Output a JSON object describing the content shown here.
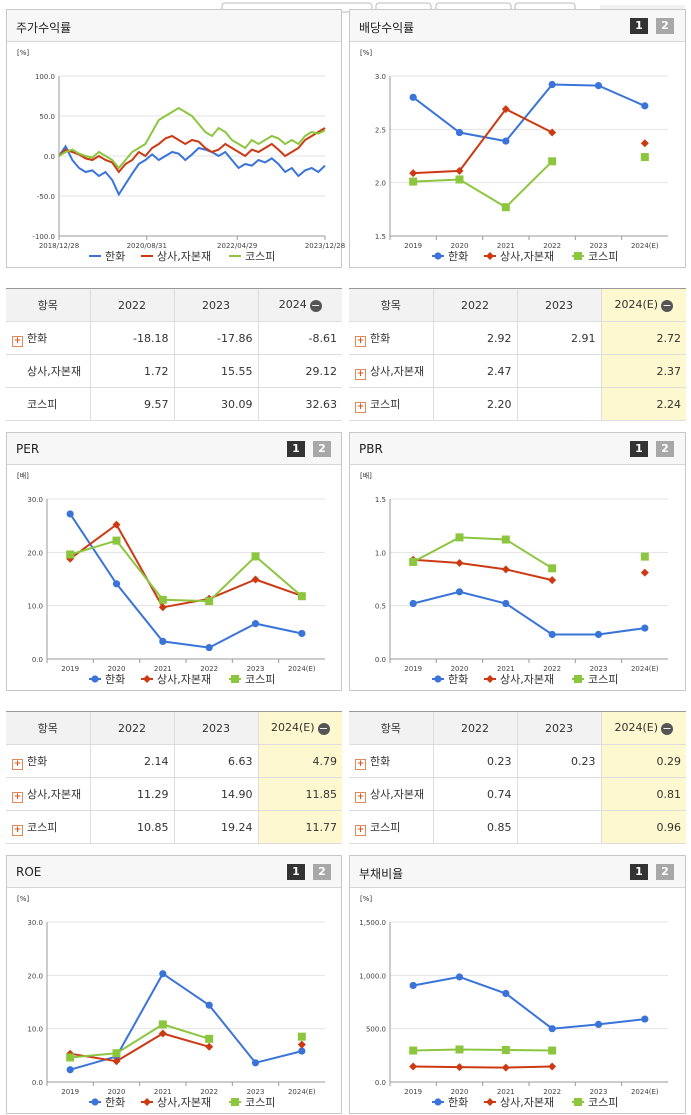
{
  "colors": {
    "hanwha": "#3a74d8",
    "sangsa": "#cc3a14",
    "kospi": "#8cc63f"
  },
  "legend": {
    "hanwha": "한화",
    "sangsa": "상사,자본재",
    "kospi": "코스피"
  },
  "pager": {
    "one": "1",
    "two": "2"
  },
  "panels": {
    "stock": {
      "title": "주가수익률"
    },
    "dividend": {
      "title": "배당수익률"
    },
    "per": {
      "title": "PER"
    },
    "pbr": {
      "title": "PBR"
    },
    "roe": {
      "title": "ROE"
    },
    "debt": {
      "title": "부채비율"
    }
  },
  "tables": {
    "stock": {
      "headers": [
        "항목",
        "2022",
        "2023",
        "2024"
      ],
      "rows": [
        {
          "name": "한화",
          "plus": true,
          "v": [
            "-18.18",
            "-17.86",
            "-8.61"
          ]
        },
        {
          "name": "상사,자본재",
          "plus": false,
          "v": [
            "1.72",
            "15.55",
            "29.12"
          ]
        },
        {
          "name": "코스피",
          "plus": false,
          "v": [
            "9.57",
            "30.09",
            "32.63"
          ]
        }
      ]
    },
    "dividend": {
      "headers": [
        "항목",
        "2022",
        "2023",
        "2024(E)"
      ],
      "rows": [
        {
          "name": "한화",
          "plus": true,
          "v": [
            "2.92",
            "2.91",
            "2.72"
          ]
        },
        {
          "name": "상사,자본재",
          "plus": true,
          "v": [
            "2.47",
            "",
            "2.37"
          ]
        },
        {
          "name": "코스피",
          "plus": true,
          "v": [
            "2.20",
            "",
            "2.24"
          ]
        }
      ]
    },
    "per": {
      "headers": [
        "항목",
        "2022",
        "2023",
        "2024(E)"
      ],
      "rows": [
        {
          "name": "한화",
          "plus": true,
          "v": [
            "2.14",
            "6.63",
            "4.79"
          ]
        },
        {
          "name": "상사,자본재",
          "plus": true,
          "v": [
            "11.29",
            "14.90",
            "11.85"
          ]
        },
        {
          "name": "코스피",
          "plus": true,
          "v": [
            "10.85",
            "19.24",
            "11.77"
          ]
        }
      ]
    },
    "pbr": {
      "headers": [
        "항목",
        "2022",
        "2023",
        "2024(E)"
      ],
      "rows": [
        {
          "name": "한화",
          "plus": true,
          "v": [
            "0.23",
            "0.23",
            "0.29"
          ]
        },
        {
          "name": "상사,자본재",
          "plus": true,
          "v": [
            "0.74",
            "",
            "0.81"
          ]
        },
        {
          "name": "코스피",
          "plus": true,
          "v": [
            "0.85",
            "",
            "0.96"
          ]
        }
      ]
    }
  },
  "chart_data": [
    {
      "id": "stock",
      "type": "line",
      "title": "주가수익률",
      "ylabel": "[%]",
      "ylim": [
        -100,
        100
      ],
      "yticks": [
        "100.0",
        "50.0",
        "0.0",
        "-50.0",
        "-100.0"
      ],
      "ytickvals": [
        100,
        50,
        0,
        -50,
        -100
      ],
      "xticks": [
        "2018/12/28",
        "2020/08/31",
        "2022/04/29",
        "2023/12/28"
      ],
      "series": [
        {
          "name": "한화",
          "key": "hanwha",
          "values": [
            0,
            12,
            -5,
            -15,
            -20,
            -18,
            -25,
            -20,
            -30,
            -48,
            -35,
            -22,
            -10,
            -5,
            2,
            -5,
            0,
            5,
            3,
            -5,
            2,
            10,
            8,
            5,
            0,
            5,
            -5,
            -15,
            -10,
            -12,
            -5,
            -8,
            -3,
            -10,
            -20,
            -15,
            -25,
            -18,
            -15,
            -20,
            -12
          ]
        },
        {
          "name": "상사,자본재",
          "key": "sangsa",
          "values": [
            0,
            8,
            5,
            2,
            -3,
            -5,
            0,
            -5,
            -8,
            -20,
            -10,
            -5,
            5,
            0,
            10,
            15,
            22,
            25,
            20,
            15,
            20,
            18,
            10,
            5,
            8,
            15,
            10,
            5,
            0,
            8,
            5,
            10,
            15,
            8,
            0,
            5,
            10,
            20,
            25,
            30,
            35
          ]
        },
        {
          "name": "코스피",
          "key": "kospi",
          "values": [
            0,
            5,
            8,
            3,
            0,
            -2,
            5,
            0,
            -5,
            -15,
            -5,
            5,
            10,
            15,
            30,
            45,
            50,
            55,
            60,
            55,
            50,
            40,
            30,
            25,
            35,
            30,
            20,
            15,
            10,
            20,
            15,
            20,
            25,
            22,
            15,
            20,
            15,
            25,
            30,
            28,
            32
          ]
        }
      ]
    },
    {
      "id": "dividend",
      "type": "line",
      "title": "배당수익률",
      "ylabel": "[%]",
      "ylim": [
        1.5,
        3.0
      ],
      "yticks": [
        "3.0",
        "2.5",
        "2.0",
        "1.5"
      ],
      "ytickvals": [
        3.0,
        2.5,
        2.0,
        1.5
      ],
      "categories": [
        "2019",
        "2020",
        "2021",
        "2022",
        "2023",
        "2024(E)"
      ],
      "series": [
        {
          "name": "한화",
          "key": "hanwha",
          "values": [
            2.8,
            2.47,
            2.39,
            2.92,
            2.91,
            2.72
          ],
          "dashedLast": false
        },
        {
          "name": "상사,자본재",
          "key": "sangsa",
          "values": [
            2.09,
            2.11,
            2.69,
            2.47,
            null,
            2.37
          ]
        },
        {
          "name": "코스피",
          "key": "kospi",
          "values": [
            2.01,
            2.03,
            1.77,
            2.2,
            null,
            2.24
          ]
        }
      ]
    },
    {
      "id": "per",
      "type": "line",
      "title": "PER",
      "ylabel": "[배]",
      "ylim": [
        0,
        30
      ],
      "yticks": [
        "30.0",
        "20.0",
        "10.0",
        "0.0"
      ],
      "ytickvals": [
        30,
        20,
        10,
        0
      ],
      "categories": [
        "2019",
        "2020",
        "2021",
        "2022",
        "2023",
        "2024(E)"
      ],
      "series": [
        {
          "name": "한화",
          "key": "hanwha",
          "values": [
            27.2,
            14.1,
            3.3,
            2.14,
            6.63,
            4.79
          ]
        },
        {
          "name": "상사,자본재",
          "key": "sangsa",
          "values": [
            18.8,
            25.2,
            9.7,
            11.29,
            14.9,
            11.85
          ]
        },
        {
          "name": "코스피",
          "key": "kospi",
          "values": [
            19.6,
            22.2,
            11.1,
            10.85,
            19.24,
            11.77
          ]
        }
      ]
    },
    {
      "id": "pbr",
      "type": "line",
      "title": "PBR",
      "ylabel": "[배]",
      "ylim": [
        0,
        1.5
      ],
      "yticks": [
        "1.5",
        "1.0",
        "0.5",
        "0.0"
      ],
      "ytickvals": [
        1.5,
        1.0,
        0.5,
        0
      ],
      "categories": [
        "2019",
        "2020",
        "2021",
        "2022",
        "2023",
        "2024(E)"
      ],
      "series": [
        {
          "name": "한화",
          "key": "hanwha",
          "values": [
            0.52,
            0.63,
            0.52,
            0.23,
            0.23,
            0.29
          ]
        },
        {
          "name": "상사,자본재",
          "key": "sangsa",
          "values": [
            0.93,
            0.9,
            0.84,
            0.74,
            null,
            0.81
          ]
        },
        {
          "name": "코스피",
          "key": "kospi",
          "values": [
            0.91,
            1.14,
            1.12,
            0.85,
            null,
            0.96
          ]
        }
      ]
    },
    {
      "id": "roe",
      "type": "line",
      "title": "ROE",
      "ylabel": "[%]",
      "ylim": [
        0,
        30
      ],
      "yticks": [
        "30.0",
        "20.0",
        "10.0",
        "0.0"
      ],
      "ytickvals": [
        30,
        20,
        10,
        0
      ],
      "categories": [
        "2019",
        "2020",
        "2021",
        "2022",
        "2023",
        "2024(E)"
      ],
      "series": [
        {
          "name": "한화",
          "key": "hanwha",
          "values": [
            2.3,
            4.8,
            20.3,
            14.4,
            3.6,
            5.8
          ]
        },
        {
          "name": "상사,자본재",
          "key": "sangsa",
          "values": [
            5.3,
            3.9,
            9.1,
            6.6,
            null,
            7.0
          ]
        },
        {
          "name": "코스피",
          "key": "kospi",
          "values": [
            4.6,
            5.4,
            10.8,
            8.1,
            null,
            8.5
          ]
        }
      ]
    },
    {
      "id": "debt",
      "type": "line",
      "title": "부채비율",
      "ylabel": "[%]",
      "ylim": [
        0,
        1500
      ],
      "yticks": [
        "1,500.0",
        "1,000.0",
        "500.0",
        "0.0"
      ],
      "ytickvals": [
        1500,
        1000,
        500,
        0
      ],
      "categories": [
        "2019",
        "2020",
        "2021",
        "2022",
        "2023",
        "2024(E)"
      ],
      "series": [
        {
          "name": "한화",
          "key": "hanwha",
          "values": [
            905,
            985,
            830,
            500,
            540,
            590
          ]
        },
        {
          "name": "상사,자본재",
          "key": "sangsa",
          "values": [
            145,
            140,
            135,
            145,
            null,
            null
          ]
        },
        {
          "name": "코스피",
          "key": "kospi",
          "values": [
            295,
            305,
            300,
            295,
            null,
            null
          ]
        }
      ]
    }
  ]
}
